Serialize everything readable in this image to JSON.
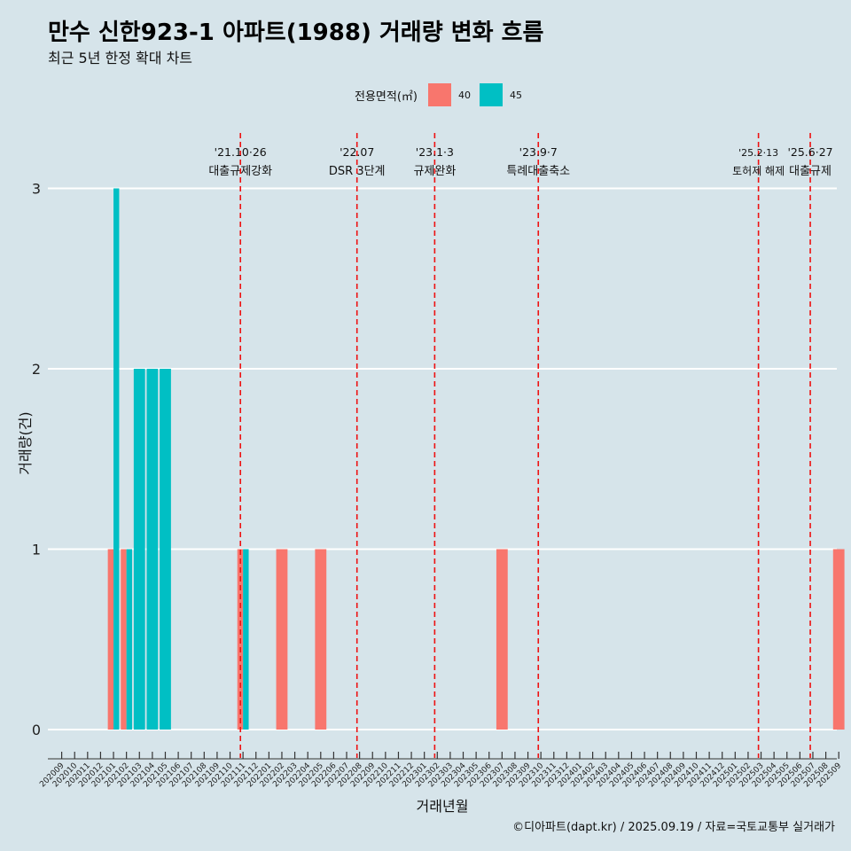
{
  "title": "만수 신한923-1 아파트(1988) 거래량 변화 흐름",
  "subtitle": "최근 5년 한정 확대 차트",
  "caption": "©디아파트(dapt.kr) / 2025.09.19 / 자료=국토교통부 실거래가",
  "legend": {
    "title": "전용면적(㎡)",
    "items": [
      {
        "label": "40",
        "color": "#f8766d"
      },
      {
        "label": "45",
        "color": "#00bfc4"
      }
    ]
  },
  "chart_data": {
    "type": "bar",
    "xlabel": "거래년월",
    "ylabel": "거래량(건)",
    "ylim": [
      0,
      3
    ],
    "yticks": [
      0,
      1,
      2,
      3
    ],
    "grid": "horizontal",
    "legend_position": "top",
    "categories": [
      "202009",
      "202010",
      "202011",
      "202012",
      "202101",
      "202102",
      "202103",
      "202104",
      "202105",
      "202106",
      "202107",
      "202108",
      "202109",
      "202110",
      "202111",
      "202112",
      "202201",
      "202202",
      "202203",
      "202204",
      "202205",
      "202206",
      "202207",
      "202208",
      "202209",
      "202210",
      "202211",
      "202212",
      "202301",
      "202302",
      "202303",
      "202304",
      "202305",
      "202306",
      "202307",
      "202308",
      "202309",
      "202310",
      "202311",
      "202312",
      "202401",
      "202402",
      "202403",
      "202404",
      "202405",
      "202406",
      "202407",
      "202408",
      "202409",
      "202410",
      "202411",
      "202412",
      "202501",
      "202502",
      "202503",
      "202504",
      "202505",
      "202506",
      "202507",
      "202508",
      "202509"
    ],
    "series": [
      {
        "name": "40",
        "color": "#f8766d",
        "values": [
          0,
          0,
          0,
          0,
          1,
          1,
          0,
          0,
          0,
          0,
          0,
          0,
          0,
          0,
          1,
          0,
          0,
          1,
          0,
          0,
          1,
          0,
          0,
          0,
          0,
          0,
          0,
          0,
          0,
          0,
          0,
          0,
          0,
          0,
          1,
          0,
          0,
          0,
          0,
          0,
          0,
          0,
          0,
          0,
          0,
          0,
          0,
          0,
          0,
          0,
          0,
          0,
          0,
          0,
          0,
          0,
          0,
          0,
          0,
          0,
          1
        ]
      },
      {
        "name": "45",
        "color": "#00bfc4",
        "values": [
          0,
          0,
          0,
          0,
          3,
          1,
          2,
          2,
          2,
          0,
          0,
          0,
          0,
          0,
          1,
          0,
          0,
          0,
          0,
          0,
          0,
          0,
          0,
          0,
          0,
          0,
          0,
          0,
          0,
          0,
          0,
          0,
          0,
          0,
          0,
          0,
          0,
          0,
          0,
          0,
          0,
          0,
          0,
          0,
          0,
          0,
          0,
          0,
          0,
          0,
          0,
          0,
          0,
          0,
          0,
          0,
          0,
          0,
          0,
          0,
          0
        ]
      }
    ],
    "events": [
      {
        "date": "'21.10·26",
        "label": "대출규제강화",
        "month_index": 13.8
      },
      {
        "date": "'22.07",
        "label": "DSR 3단계",
        "month_index": 22.8
      },
      {
        "date": "'23.1·3",
        "label": "규제완화",
        "month_index": 28.8
      },
      {
        "date": "'23.9·7",
        "label": "특례대출축소",
        "month_index": 36.8
      },
      {
        "date": "'25.2·13",
        "label": "토허제 해제",
        "month_index": 53.8
      },
      {
        "date": "'25.6·27",
        "label": "대출규제",
        "month_index": 57.8
      }
    ]
  }
}
